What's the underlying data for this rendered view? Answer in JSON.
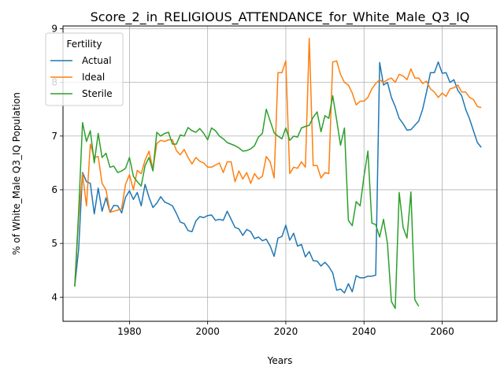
{
  "chart_data": {
    "type": "line",
    "title": "Score_2_in_RELIGIOUS_ATTENDANCE_for_White_Male_Q3_IQ",
    "xlabel": "Years",
    "ylabel": "% of White_Male Q3_IQ Population",
    "xlim": [
      1963,
      2074
    ],
    "ylim": [
      3.55,
      9.05
    ],
    "xticks": [
      1980,
      2000,
      2020,
      2040,
      2060
    ],
    "yticks": [
      4,
      5,
      6,
      7,
      8,
      9
    ],
    "grid": true,
    "legend": {
      "title": "Fertility",
      "placement": "top-left"
    },
    "series": [
      {
        "name": "Actual",
        "color": "#1f77b4",
        "x": [
          1966,
          1967,
          1968,
          1969,
          1970,
          1971,
          1972,
          1973,
          1974,
          1975,
          1976,
          1977,
          1978,
          1979,
          1980,
          1981,
          1982,
          1983,
          1984,
          1985,
          1986,
          1987,
          1988,
          1989,
          1990,
          1991,
          1992,
          1993,
          1994,
          1995,
          1996,
          1997,
          1998,
          1999,
          2000,
          2001,
          2002,
          2003,
          2004,
          2005,
          2006,
          2007,
          2008,
          2009,
          2010,
          2011,
          2012,
          2013,
          2014,
          2015,
          2016,
          2017,
          2018,
          2019,
          2020,
          2021,
          2022,
          2023,
          2024,
          2025,
          2026,
          2027,
          2028,
          2029,
          2030,
          2031,
          2032,
          2033,
          2034,
          2035,
          2036,
          2037,
          2038,
          2039,
          2040,
          2041,
          2042,
          2043,
          2044,
          2045,
          2046,
          2047,
          2048,
          2049,
          2050,
          2051,
          2052,
          2053,
          2054,
          2055,
          2056,
          2057,
          2058,
          2059,
          2060,
          2061,
          2062,
          2063,
          2064,
          2065,
          2066,
          2067,
          2068,
          2069,
          2070
        ],
        "y": [
          4.2,
          4.9,
          6.32,
          6.15,
          6.12,
          5.55,
          6.03,
          5.6,
          5.85,
          5.58,
          5.71,
          5.7,
          5.57,
          5.86,
          5.98,
          5.82,
          5.95,
          5.7,
          6.1,
          5.86,
          5.67,
          5.75,
          5.87,
          5.77,
          5.74,
          5.7,
          5.56,
          5.4,
          5.37,
          5.24,
          5.22,
          5.42,
          5.5,
          5.48,
          5.52,
          5.53,
          5.43,
          5.45,
          5.43,
          5.6,
          5.45,
          5.3,
          5.27,
          5.15,
          5.26,
          5.22,
          5.09,
          5.12,
          5.05,
          5.08,
          4.95,
          4.76,
          5.1,
          5.13,
          5.34,
          5.06,
          5.19,
          4.95,
          4.98,
          4.75,
          4.85,
          4.68,
          4.67,
          4.58,
          4.65,
          4.57,
          4.45,
          4.13,
          4.15,
          4.08,
          4.25,
          4.1,
          4.4,
          4.36,
          4.36,
          4.39,
          4.39,
          4.41,
          8.37,
          7.95,
          8.0,
          7.72,
          7.55,
          7.33,
          7.23,
          7.11,
          7.12,
          7.2,
          7.28,
          7.5,
          7.82,
          8.18,
          8.18,
          8.38,
          8.17,
          8.18,
          8.0,
          8.05,
          7.85,
          7.75,
          7.5,
          7.32,
          7.1,
          6.88,
          6.79
        ]
      },
      {
        "name": "Ideal",
        "color": "#ff7f0e",
        "x": [
          1966,
          1967,
          1968,
          1969,
          1970,
          1971,
          1972,
          1973,
          1974,
          1975,
          1976,
          1977,
          1978,
          1979,
          1980,
          1981,
          1982,
          1983,
          1984,
          1985,
          1986,
          1987,
          1988,
          1989,
          1990,
          1991,
          1992,
          1993,
          1994,
          1995,
          1996,
          1997,
          1998,
          1999,
          2000,
          2001,
          2002,
          2003,
          2004,
          2005,
          2006,
          2007,
          2008,
          2009,
          2010,
          2011,
          2012,
          2013,
          2014,
          2015,
          2016,
          2017,
          2018,
          2019,
          2020,
          2021,
          2022,
          2023,
          2024,
          2025,
          2026,
          2027,
          2028,
          2029,
          2030,
          2031,
          2032,
          2033,
          2034,
          2035,
          2036,
          2037,
          2038,
          2039,
          2040,
          2041,
          2042,
          2043,
          2044,
          2045,
          2046,
          2047,
          2048,
          2049,
          2050,
          2051,
          2052,
          2053,
          2054,
          2055,
          2056,
          2057,
          2058,
          2059,
          2060,
          2061,
          2062,
          2063,
          2064,
          2065,
          2066,
          2067,
          2068,
          2069,
          2070
        ],
        "y": [
          4.2,
          5.5,
          6.3,
          5.7,
          6.85,
          6.6,
          6.62,
          6.12,
          6.0,
          5.58,
          5.6,
          5.62,
          5.65,
          6.1,
          6.28,
          6.0,
          6.36,
          6.3,
          6.55,
          6.72,
          6.38,
          6.86,
          6.92,
          6.9,
          6.93,
          6.93,
          6.73,
          6.65,
          6.75,
          6.6,
          6.48,
          6.6,
          6.53,
          6.5,
          6.42,
          6.42,
          6.46,
          6.5,
          6.32,
          6.52,
          6.52,
          6.15,
          6.35,
          6.2,
          6.32,
          6.12,
          6.3,
          6.2,
          6.25,
          6.62,
          6.52,
          6.22,
          8.18,
          8.18,
          8.4,
          6.3,
          6.42,
          6.4,
          6.52,
          6.42,
          8.82,
          6.45,
          6.45,
          6.22,
          6.32,
          6.3,
          8.38,
          8.4,
          8.15,
          8.0,
          7.95,
          7.8,
          7.58,
          7.65,
          7.65,
          7.72,
          7.88,
          7.98,
          8.05,
          8.0,
          8.05,
          8.08,
          8.0,
          8.15,
          8.12,
          8.05,
          8.25,
          8.08,
          8.08,
          7.98,
          8.02,
          7.88,
          7.82,
          7.72,
          7.8,
          7.74,
          7.88,
          7.9,
          7.95,
          7.82,
          7.82,
          7.72,
          7.68,
          7.55,
          7.53
        ]
      },
      {
        "name": "Sterile",
        "color": "#2ca02c",
        "x": [
          1966,
          1967,
          1968,
          1969,
          1970,
          1971,
          1972,
          1973,
          1974,
          1975,
          1976,
          1977,
          1978,
          1979,
          1980,
          1981,
          1982,
          1983,
          1984,
          1985,
          1986,
          1987,
          1988,
          1989,
          1990,
          1991,
          1992,
          1993,
          1994,
          1995,
          1996,
          1997,
          1998,
          1999,
          2000,
          2001,
          2002,
          2003,
          2004,
          2005,
          2006,
          2007,
          2008,
          2009,
          2010,
          2011,
          2012,
          2013,
          2014,
          2015,
          2016,
          2017,
          2018,
          2019,
          2020,
          2021,
          2022,
          2023,
          2024,
          2025,
          2026,
          2027,
          2028,
          2029,
          2030,
          2031,
          2032,
          2033,
          2034,
          2035,
          2036,
          2037,
          2038,
          2039,
          2040,
          2041,
          2042,
          2043,
          2044,
          2045,
          2046,
          2047,
          2048,
          2049,
          2050,
          2051,
          2052,
          2053,
          2054
        ],
        "y": [
          4.2,
          5.6,
          7.25,
          6.9,
          7.1,
          6.5,
          7.05,
          6.6,
          6.68,
          6.42,
          6.44,
          6.32,
          6.35,
          6.4,
          6.6,
          6.25,
          6.15,
          6.07,
          6.45,
          6.6,
          6.35,
          7.07,
          7.0,
          7.05,
          7.07,
          6.85,
          6.85,
          7.02,
          7.0,
          7.16,
          7.1,
          7.07,
          7.14,
          7.05,
          6.93,
          7.15,
          7.1,
          7.0,
          6.95,
          6.88,
          6.85,
          6.82,
          6.78,
          6.72,
          6.73,
          6.76,
          6.82,
          6.98,
          7.05,
          7.5,
          7.28,
          7.06,
          7.0,
          6.95,
          7.15,
          6.92,
          7.0,
          6.98,
          7.15,
          7.18,
          7.2,
          7.35,
          7.45,
          7.08,
          7.38,
          7.33,
          7.75,
          7.3,
          6.83,
          7.15,
          5.43,
          5.33,
          5.78,
          5.7,
          6.25,
          6.72,
          5.38,
          5.35,
          5.12,
          5.45,
          5.0,
          3.92,
          3.79,
          5.95,
          5.3,
          5.1,
          5.96,
          3.95,
          3.83
        ]
      }
    ]
  }
}
